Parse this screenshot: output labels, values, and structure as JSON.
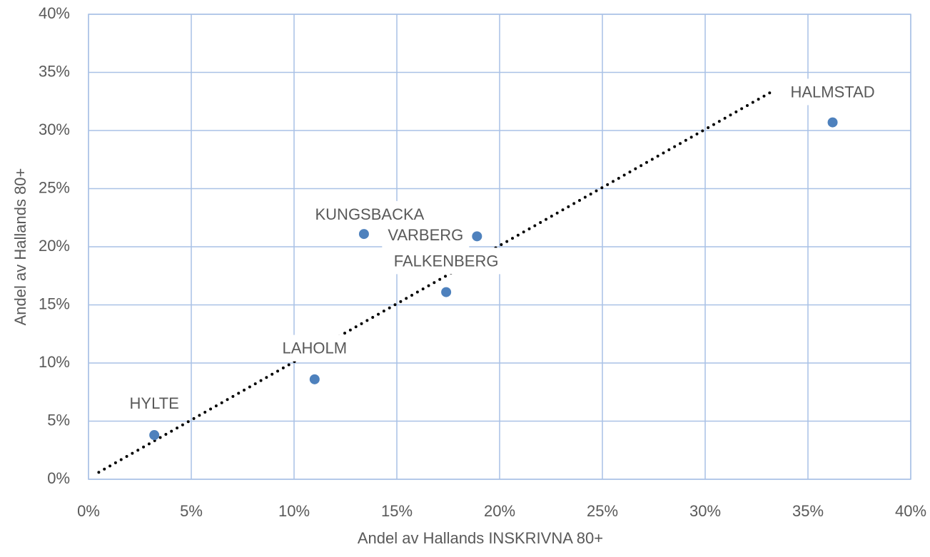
{
  "chart_data": {
    "type": "scatter",
    "x_label": "Andel av Hallands INSKRIVNA 80+",
    "y_label": "Andel av Hallands 80+",
    "labels": [
      "HYLTE",
      "LAHOLM",
      "KUNGSBACKA",
      "VARBERG",
      "FALKENBERG",
      "HALMSTAD"
    ],
    "x": [
      3.2,
      11.0,
      13.4,
      18.9,
      17.4,
      36.2
    ],
    "values": [
      3.8,
      8.6,
      21.1,
      20.9,
      16.1,
      30.7
    ],
    "color": "#4e81bd",
    "trendline": {
      "x": [
        0.5,
        33.3
      ],
      "y": [
        0.6,
        33.4
      ],
      "color": "#000000"
    },
    "xlim": [
      0,
      40
    ],
    "ylim": [
      0,
      40
    ],
    "xticks": [
      {
        "value": 0,
        "label": "0%"
      },
      {
        "value": 5,
        "label": "5%"
      },
      {
        "value": 10,
        "label": "10%"
      },
      {
        "value": 15,
        "label": "15%"
      },
      {
        "value": 20,
        "label": "20%"
      },
      {
        "value": 25,
        "label": "25%"
      },
      {
        "value": 30,
        "label": "30%"
      },
      {
        "value": 35,
        "label": "35%"
      },
      {
        "value": 40,
        "label": "40%"
      }
    ],
    "yticks": [
      {
        "value": 0,
        "label": "0%"
      },
      {
        "value": 5,
        "label": "5%"
      },
      {
        "value": 10,
        "label": "10%"
      },
      {
        "value": 15,
        "label": "15%"
      },
      {
        "value": 20,
        "label": "20%"
      },
      {
        "value": 25,
        "label": "25%"
      },
      {
        "value": 30,
        "label": "30%"
      },
      {
        "value": 35,
        "label": "35%"
      },
      {
        "value": 40,
        "label": "40%"
      }
    ],
    "grid": true
  }
}
